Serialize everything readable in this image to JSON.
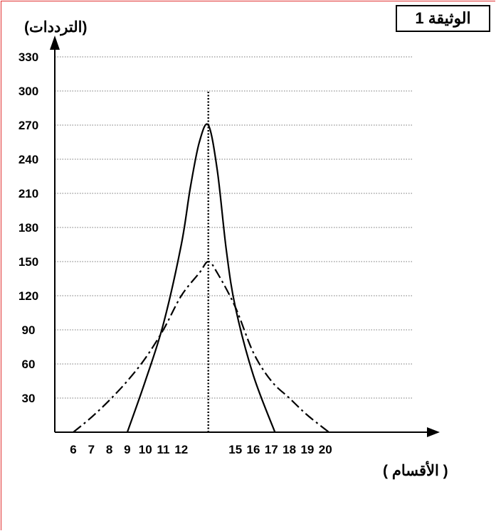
{
  "document_label": "الوثيقة 1",
  "chart_data": {
    "type": "line",
    "title": "",
    "ylabel": "(الترددات)",
    "xlabel": "( الأقسام )",
    "xlim": [
      5,
      22
    ],
    "ylim": [
      0,
      330
    ],
    "x_ticks": [
      6,
      7,
      8,
      9,
      10,
      11,
      12,
      15,
      16,
      17,
      18,
      19,
      20
    ],
    "y_ticks": [
      30,
      60,
      90,
      120,
      150,
      180,
      210,
      240,
      270,
      300,
      330
    ],
    "grid": "horizontal-dotted",
    "series": [
      {
        "style": "solid",
        "x": [
          9,
          10,
          11,
          12,
          12.5,
          13,
          13.5,
          14,
          14.5,
          15,
          16,
          17.2
        ],
        "y": [
          0,
          45,
          95,
          165,
          215,
          255,
          270,
          230,
          160,
          110,
          50,
          0
        ]
      },
      {
        "style": "dash-dot",
        "x": [
          6,
          7,
          8,
          9,
          10,
          11,
          12,
          13,
          13.5,
          14,
          15,
          16,
          17,
          18,
          19,
          20.2
        ],
        "y": [
          0,
          13,
          28,
          45,
          65,
          90,
          120,
          140,
          150,
          140,
          110,
          70,
          45,
          30,
          15,
          0
        ]
      }
    ],
    "annotations": [
      {
        "type": "vertical-dotted-line",
        "x": 13.5,
        "y_top": 300
      }
    ]
  }
}
